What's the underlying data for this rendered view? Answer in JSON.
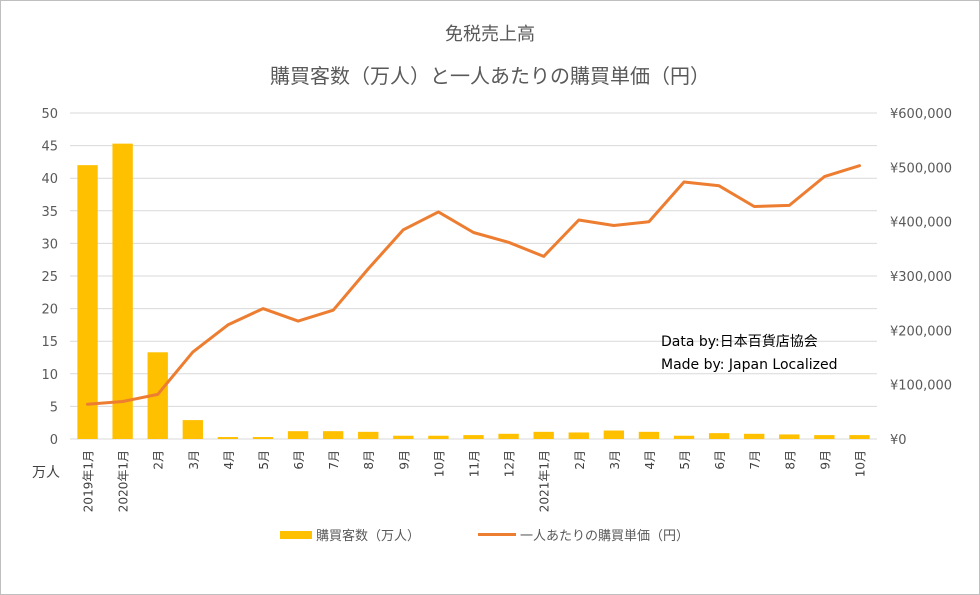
{
  "chart_data": {
    "type": "bar+line",
    "title": "免税売上高",
    "subtitle": "購買客数（万人）と一人あたりの購買単価（円）",
    "categories": [
      "2019年1月",
      "2020年1月",
      "2月",
      "3月",
      "4月",
      "5月",
      "6月",
      "7月",
      "8月",
      "9月",
      "10月",
      "11月",
      "12月",
      "2021年1月",
      "2月",
      "3月",
      "4月",
      "5月",
      "6月",
      "7月",
      "8月",
      "9月",
      "10月"
    ],
    "series": [
      {
        "name": "購買客数（万人）",
        "type": "bar",
        "axis": "left",
        "color": "#FFC000",
        "values": [
          42,
          45.3,
          13.3,
          2.9,
          0.3,
          0.3,
          1.2,
          1.2,
          1.1,
          0.5,
          0.5,
          0.6,
          0.8,
          1.1,
          1.0,
          1.3,
          1.1,
          0.5,
          0.9,
          0.8,
          0.7,
          0.6,
          0.6
        ]
      },
      {
        "name": "一人あたりの購買単価（円）",
        "type": "line",
        "axis": "right",
        "color": "#ED7D31",
        "values": [
          64000,
          69000,
          82000,
          160000,
          210000,
          240000,
          217000,
          237000,
          313000,
          385000,
          418000,
          380000,
          362000,
          336000,
          403000,
          393000,
          400000,
          473000,
          466000,
          428000,
          430000,
          483000,
          503000
        ]
      }
    ],
    "left_axis": {
      "min": 0,
      "max": 50,
      "ticks": [
        "0",
        "5",
        "10",
        "15",
        "20",
        "25",
        "30",
        "35",
        "40",
        "45",
        "50"
      ],
      "unit_label": "万人"
    },
    "right_axis": {
      "min": 0,
      "max": 600000,
      "ticks": [
        "¥0",
        "¥100,000",
        "¥200,000",
        "¥300,000",
        "¥400,000",
        "¥500,000",
        "¥600,000"
      ]
    },
    "grid": true,
    "legend_position": "bottom"
  },
  "annotations": {
    "data_by": "Data by:日本百貨店協会",
    "made_by": "Made by: Japan Localized"
  }
}
